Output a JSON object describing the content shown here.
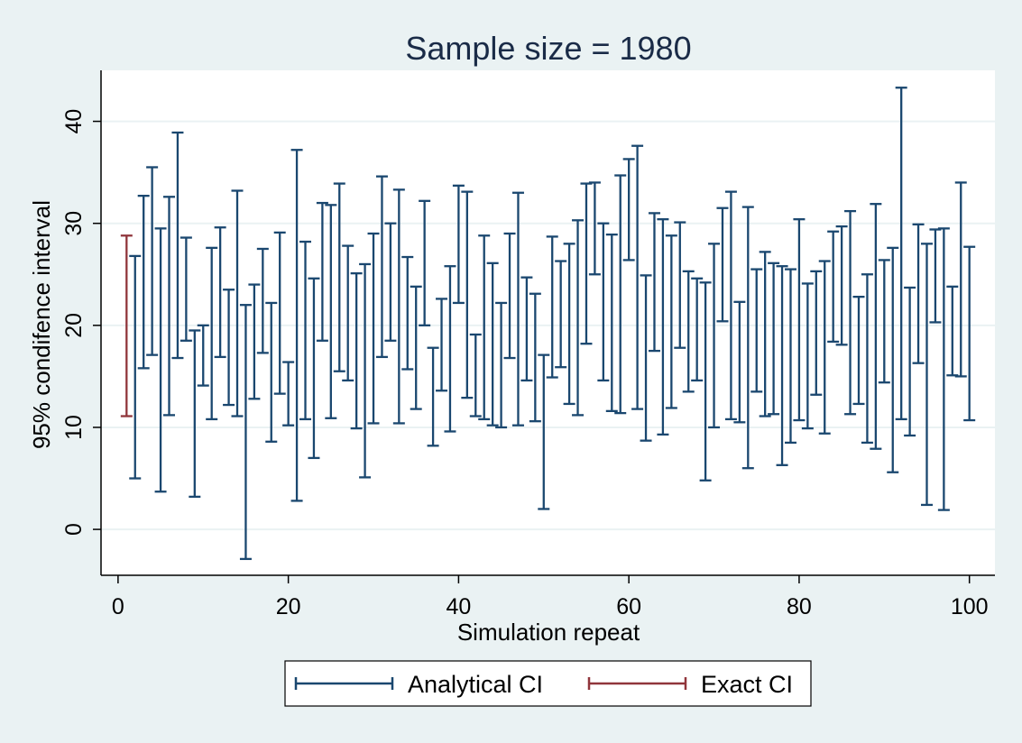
{
  "chart_data": {
    "type": "errorbar",
    "title": "Sample size = 1980",
    "xlabel": "Simulation repeat",
    "ylabel": "95% condifence interval",
    "xlim": [
      -2,
      103
    ],
    "ylim": [
      -4.5,
      45
    ],
    "xticks": [
      0,
      20,
      40,
      60,
      80,
      100
    ],
    "yticks": [
      0,
      10,
      20,
      30,
      40
    ],
    "grid": true,
    "legend_position": "bottom",
    "colors": {
      "analytical": "#1a476f",
      "exact": "#90353b",
      "background": "#eaf2f3",
      "plot_bg": "#ffffff",
      "grid": "#eaf2f3"
    },
    "series": [
      {
        "name": "Analytical CI",
        "lower": [
          5.0,
          15.8,
          17.1,
          3.7,
          11.2,
          16.8,
          18.5,
          3.2,
          14.1,
          10.8,
          16.9,
          12.2,
          11.1,
          -2.9,
          12.8,
          17.3,
          8.6,
          13.3,
          10.2,
          2.8,
          10.8,
          7.0,
          18.5,
          10.9,
          15.5,
          14.6,
          9.9,
          5.1,
          10.4,
          16.9,
          18.5,
          10.4,
          15.7,
          11.8,
          20.0,
          8.2,
          13.6,
          9.6,
          22.2,
          12.9,
          11.1,
          10.8,
          10.2,
          10.0,
          16.8,
          10.2,
          14.6,
          10.6,
          2.0,
          14.9,
          15.9,
          12.3,
          11.2,
          18.2,
          25.0,
          14.6,
          11.6,
          11.4,
          26.4,
          11.8,
          8.7,
          17.5,
          9.3,
          11.9,
          17.8,
          13.5,
          14.6,
          4.8,
          10.0,
          20.4,
          10.8,
          10.5,
          6.0,
          13.5,
          11.1,
          11.3,
          6.3,
          8.5,
          10.7,
          9.9,
          13.2,
          9.4,
          18.4,
          18.1,
          11.3,
          12.3,
          8.5,
          7.9,
          14.4,
          5.6,
          10.8,
          9.2,
          16.3,
          2.4,
          20.3,
          1.9,
          15.1,
          15.0,
          10.7
        ],
        "upper": [
          26.8,
          32.7,
          35.5,
          29.5,
          32.6,
          38.9,
          28.6,
          19.5,
          20.0,
          27.6,
          29.6,
          23.5,
          33.2,
          22.0,
          24.0,
          27.5,
          22.2,
          29.1,
          16.4,
          37.2,
          28.2,
          24.6,
          32.0,
          31.8,
          33.9,
          27.8,
          25.1,
          26.0,
          29.0,
          34.6,
          30.0,
          33.3,
          26.7,
          23.8,
          32.2,
          17.8,
          22.6,
          25.8,
          33.7,
          33.1,
          19.1,
          28.8,
          26.1,
          22.2,
          29.0,
          33.0,
          24.7,
          23.1,
          17.1,
          28.7,
          26.3,
          28.0,
          30.3,
          33.9,
          34.0,
          30.0,
          28.9,
          34.7,
          36.3,
          37.6,
          24.9,
          31.0,
          30.4,
          28.8,
          30.1,
          25.3,
          24.6,
          24.2,
          28.0,
          31.5,
          33.1,
          22.3,
          31.6,
          25.5,
          27.2,
          26.1,
          25.8,
          25.5,
          30.4,
          24.1,
          25.3,
          26.3,
          29.2,
          29.7,
          31.2,
          22.8,
          25.0,
          31.9,
          26.4,
          27.6,
          43.3,
          23.7,
          29.9,
          28.0,
          29.4,
          29.5,
          23.8,
          34.0,
          27.7
        ]
      },
      {
        "name": "Exact CI",
        "lower": [
          11.1
        ],
        "upper": [
          28.8
        ]
      }
    ]
  },
  "legend": {
    "analytical_label": "Analytical CI",
    "exact_label": "Exact CI"
  }
}
